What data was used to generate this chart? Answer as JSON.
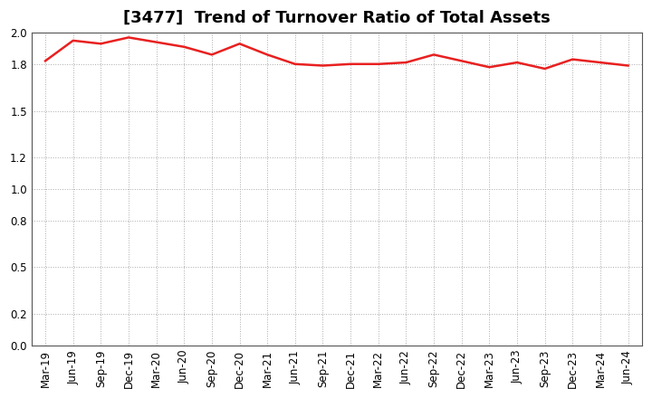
{
  "title": "[3477]  Trend of Turnover Ratio of Total Assets",
  "x_labels": [
    "Mar-19",
    "Jun-19",
    "Sep-19",
    "Dec-19",
    "Mar-20",
    "Jun-20",
    "Sep-20",
    "Dec-20",
    "Mar-21",
    "Jun-21",
    "Sep-21",
    "Dec-21",
    "Mar-22",
    "Jun-22",
    "Sep-22",
    "Dec-22",
    "Mar-23",
    "Jun-23",
    "Sep-23",
    "Dec-23",
    "Mar-24",
    "Jun-24"
  ],
  "y_values": [
    1.82,
    1.95,
    1.93,
    1.97,
    1.94,
    1.91,
    1.86,
    1.93,
    1.86,
    1.8,
    1.79,
    1.8,
    1.8,
    1.81,
    1.86,
    1.82,
    1.78,
    1.81,
    1.77,
    1.83,
    1.81,
    1.79
  ],
  "line_color": "#e82020",
  "ylim": [
    0.0,
    2.0
  ],
  "yticks": [
    0.0,
    0.2,
    0.5,
    0.8,
    1.0,
    1.2,
    1.5,
    1.8,
    2.0
  ],
  "background_color": "#ffffff",
  "grid_color": "#aaaaaa",
  "title_fontsize": 13,
  "tick_fontsize": 8.5
}
